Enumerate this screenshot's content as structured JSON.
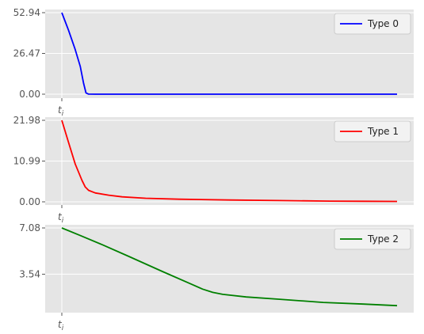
{
  "chart_data": [
    {
      "type": "line",
      "x_ticks": [
        {
          "value": 0,
          "label": "t",
          "subscript": "i"
        }
      ],
      "y_ticks": [
        "0.00",
        "26.47",
        "52.94"
      ],
      "ylim": [
        0,
        52.94
      ],
      "xlim": [
        0,
        100
      ],
      "grid": true,
      "legend_position": "top-right",
      "series": [
        {
          "name": "Type 0",
          "color": "#0000ff",
          "points": [
            [
              0,
              52.94
            ],
            [
              2,
              41.5
            ],
            [
              4,
              29.0
            ],
            [
              5.5,
              18.0
            ],
            [
              6.5,
              7.0
            ],
            [
              7.2,
              0.8
            ],
            [
              8,
              0.05
            ],
            [
              10,
              0
            ],
            [
              100,
              0
            ]
          ]
        }
      ]
    },
    {
      "type": "line",
      "x_ticks": [
        {
          "value": 0,
          "label": "t",
          "subscript": "i"
        }
      ],
      "y_ticks": [
        "0.00",
        "10.99",
        "21.98"
      ],
      "ylim": [
        0,
        21.98
      ],
      "xlim": [
        0,
        100
      ],
      "grid": true,
      "legend_position": "top-right",
      "series": [
        {
          "name": "Type 1",
          "color": "#ff0000",
          "points": [
            [
              0,
              21.98
            ],
            [
              2,
              16.0
            ],
            [
              4,
              10.2
            ],
            [
              6,
              5.8
            ],
            [
              7,
              4.0
            ],
            [
              8,
              3.1
            ],
            [
              10,
              2.4
            ],
            [
              14,
              1.8
            ],
            [
              18,
              1.35
            ],
            [
              25,
              0.95
            ],
            [
              35,
              0.7
            ],
            [
              50,
              0.5
            ],
            [
              65,
              0.35
            ],
            [
              80,
              0.2
            ],
            [
              90,
              0.15
            ],
            [
              100,
              0.1
            ]
          ]
        }
      ]
    },
    {
      "type": "line",
      "x_ticks": [
        {
          "value": 0,
          "label": "t",
          "subscript": "i"
        }
      ],
      "y_ticks": [
        "3.54",
        "7.08"
      ],
      "ylim": [
        0.84,
        7.08
      ],
      "xlim": [
        0,
        100
      ],
      "grid": true,
      "legend_position": "top-right",
      "series": [
        {
          "name": "Type 2",
          "color": "#008000",
          "points": [
            [
              0,
              7.08
            ],
            [
              5,
              6.55
            ],
            [
              12,
              5.8
            ],
            [
              20,
              4.9
            ],
            [
              30,
              3.75
            ],
            [
              38,
              2.85
            ],
            [
              42,
              2.4
            ],
            [
              45,
              2.15
            ],
            [
              48,
              2.0
            ],
            [
              55,
              1.8
            ],
            [
              65,
              1.62
            ],
            [
              78,
              1.38
            ],
            [
              90,
              1.25
            ],
            [
              100,
              1.13
            ]
          ]
        }
      ]
    }
  ]
}
